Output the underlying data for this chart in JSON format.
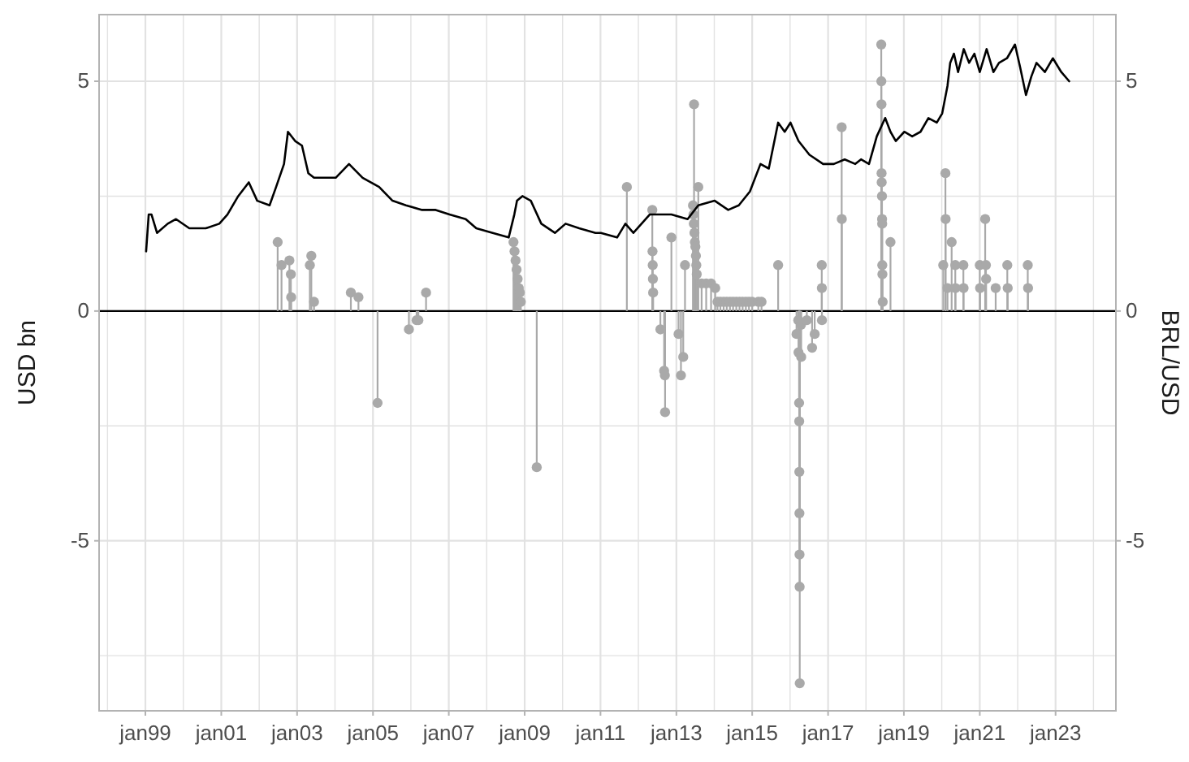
{
  "chart_data": {
    "type": "lollipop",
    "ylabel": "USD bn",
    "y2label": "BRL/USD",
    "xlim": [
      "1997-10-12",
      "2024-08-04"
    ],
    "xticks": [
      {
        "value": "1998-01-01",
        "label": null
      },
      {
        "value": "1999-01-01",
        "label": "jan99"
      },
      {
        "value": "2000-01-01",
        "label": null
      },
      {
        "value": "2001-01-01",
        "label": "jan01"
      },
      {
        "value": "2002-01-01",
        "label": null
      },
      {
        "value": "2003-01-01",
        "label": "jan03"
      },
      {
        "value": "2004-01-01",
        "label": null
      },
      {
        "value": "2005-01-01",
        "label": "jan05"
      },
      {
        "value": "2006-01-01",
        "label": null
      },
      {
        "value": "2007-01-01",
        "label": "jan07"
      },
      {
        "value": "2008-01-01",
        "label": null
      },
      {
        "value": "2009-01-01",
        "label": "jan09"
      },
      {
        "value": "2010-01-01",
        "label": null
      },
      {
        "value": "2011-01-01",
        "label": "jan11"
      },
      {
        "value": "2012-01-01",
        "label": null
      },
      {
        "value": "2013-01-01",
        "label": "jan13"
      },
      {
        "value": "2014-01-01",
        "label": null
      },
      {
        "value": "2015-01-01",
        "label": "jan15"
      },
      {
        "value": "2016-01-01",
        "label": null
      },
      {
        "value": "2017-01-01",
        "label": "jan17"
      },
      {
        "value": "2018-01-01",
        "label": null
      },
      {
        "value": "2019-01-01",
        "label": "jan19"
      },
      {
        "value": "2020-01-01",
        "label": null
      },
      {
        "value": "2021-01-01",
        "label": "jan21"
      },
      {
        "value": "2022-01-01",
        "label": null
      },
      {
        "value": "2023-01-01",
        "label": "jan23"
      },
      {
        "value": "2024-01-01",
        "label": null
      }
    ],
    "ylim": [
      -8.7,
      6.45
    ],
    "yticks": [
      {
        "value": -7.5,
        "label": null
      },
      -5,
      {
        "value": -2.5,
        "label": null
      },
      0,
      {
        "value": 2.5,
        "label": null
      },
      5
    ],
    "y2lim": [
      -8.7,
      6.45
    ],
    "y2ticks": [
      -5,
      0,
      5
    ],
    "grid": true,
    "ref_lines": [
      {
        "axis": "y",
        "value": 0,
        "color": "#000000"
      }
    ],
    "series": [
      {
        "color": "#a9a9a9",
        "marker": "circle",
        "x": [
          "2002-06-28",
          "2002-08-04",
          "2002-10-19",
          "2002-11-02",
          "2002-11-05",
          "2003-05-04",
          "2003-05-18",
          "2003-06-13",
          "2004-06-02",
          "2004-08-14",
          "2005-02-14",
          "2005-12-13",
          "2006-02-25",
          "2006-03-14",
          "2006-05-27",
          "2008-09-15",
          "2008-09-25",
          "2008-10-05",
          "2008-10-15",
          "2008-10-25",
          "2008-11-05",
          "2008-11-15",
          "2008-11-25",
          "2009-04-27",
          "2011-09-12",
          "2012-05-14",
          "2012-05-16",
          "2012-05-18",
          "2012-05-20",
          "2012-05-22",
          "2012-07-31",
          "2012-09-05",
          "2012-09-12",
          "2012-09-14",
          "2012-11-14",
          "2013-01-22",
          "2013-02-14",
          "2013-03-08",
          "2013-03-25",
          "2013-06-20",
          "2013-06-10",
          "2013-06-14",
          "2013-06-18",
          "2013-06-24",
          "2013-06-28",
          "2013-07-03",
          "2013-07-08",
          "2013-07-12",
          "2013-07-16",
          "2013-07-31",
          "2013-09-01",
          "2013-10-15",
          "2013-12-01",
          "2014-01-10",
          "2014-02-01",
          "2014-03-01",
          "2014-04-01",
          "2014-05-01",
          "2014-06-01",
          "2014-07-01",
          "2014-08-01",
          "2014-09-01",
          "2014-10-01",
          "2014-11-01",
          "2014-12-01",
          "2015-01-01",
          "2015-03-01",
          "2015-04-01",
          "2015-09-08",
          "2016-03-03",
          "2016-03-20",
          "2016-03-22",
          "2016-03-28",
          "2016-03-29",
          "2016-03-30",
          "2016-03-31",
          "2016-04-01",
          "2016-04-02",
          "2016-04-03",
          "2016-04-15",
          "2016-04-17",
          "2016-06-10",
          "2016-07-31",
          "2016-08-25",
          "2016-11-03",
          "2016-11-01",
          "2016-11-02",
          "2017-05-12",
          "2017-05-13",
          "2018-05-28",
          "2018-05-29",
          "2018-05-30",
          "2018-05-31",
          "2018-06-01",
          "2018-06-04",
          "2018-06-05",
          "2018-06-06",
          "2018-06-07",
          "2018-06-08",
          "2018-06-11",
          "2018-08-25",
          "2020-01-15",
          "2020-02-05",
          "2020-02-07",
          "2020-02-25",
          "2020-04-05",
          "2020-05-10",
          "2020-05-12",
          "2020-07-27",
          "2020-07-29",
          "2021-01-01",
          "2021-01-04",
          "2021-02-22",
          "2021-03-01",
          "2021-03-03",
          "2021-06-03",
          "2021-09-23",
          "2021-09-27",
          "2022-04-08",
          "2022-04-11"
        ],
        "values": [
          1.5,
          1.0,
          1.1,
          0.8,
          0.3,
          1.0,
          1.2,
          0.2,
          0.4,
          0.3,
          -2.0,
          -0.4,
          -0.2,
          -0.2,
          0.4,
          1.5,
          1.3,
          1.1,
          0.9,
          0.7,
          0.5,
          0.4,
          0.2,
          -3.4,
          2.7,
          2.2,
          1.3,
          1.0,
          0.7,
          0.4,
          -0.4,
          -1.3,
          -1.4,
          -2.2,
          1.6,
          -0.5,
          -1.4,
          -1.0,
          1.0,
          4.5,
          2.3,
          2.1,
          1.9,
          1.7,
          1.5,
          1.4,
          1.2,
          1.0,
          0.8,
          2.7,
          0.6,
          0.6,
          0.6,
          0.5,
          0.2,
          0.2,
          0.2,
          0.2,
          0.2,
          0.2,
          0.2,
          0.2,
          0.2,
          0.2,
          0.2,
          0.2,
          0.2,
          0.2,
          1.0,
          -0.5,
          -0.2,
          -0.9,
          -2.0,
          -2.4,
          -3.5,
          -4.4,
          -5.3,
          -6.0,
          -8.1,
          -0.3,
          -1.0,
          -0.2,
          -0.8,
          -0.5,
          -0.2,
          1.0,
          0.5,
          4.0,
          2.0,
          5.8,
          5.0,
          4.5,
          3.0,
          2.8,
          2.5,
          2.0,
          1.9,
          1.0,
          0.8,
          0.2,
          1.5,
          1.0,
          3.0,
          2.0,
          0.5,
          1.5,
          1.0,
          0.5,
          1.0,
          0.5,
          1.0,
          0.5,
          2.0,
          1.0,
          0.7,
          0.5,
          1.0,
          0.5,
          1.0,
          0.5
        ]
      },
      {
        "type": "line",
        "color": "#000000",
        "x": [
          "1999-01-08",
          "1999-02-02",
          "1999-03-01",
          "1999-04-23",
          "1999-08-04",
          "1999-10-23",
          "2000-02-28",
          "2000-08-04",
          "2000-12-13",
          "2001-03-01",
          "2001-06-13",
          "2001-09-23",
          "2001-12-13",
          "2002-04-11",
          "2002-06-13",
          "2002-08-28",
          "2002-10-05",
          "2002-12-13",
          "2003-02-17",
          "2003-04-19",
          "2003-06-13",
          "2003-09-23",
          "2004-01-08",
          "2004-05-15",
          "2004-09-23",
          "2005-03-01",
          "2005-07-08",
          "2005-11-14",
          "2006-04-19",
          "2006-08-28",
          "2007-01-08",
          "2007-06-13",
          "2007-09-23",
          "2008-02-28",
          "2008-07-31",
          "2008-09-23",
          "2008-10-19",
          "2008-12-10",
          "2009-03-01",
          "2009-06-10",
          "2009-10-19",
          "2010-01-30",
          "2010-06-10",
          "2010-11-14",
          "2011-01-05",
          "2011-06-10",
          "2011-08-29",
          "2011-11-14",
          "2012-04-19",
          "2012-11-14",
          "2013-04-19",
          "2013-07-31",
          "2014-01-05",
          "2014-05-15",
          "2014-08-25",
          "2014-12-10",
          "2015-03-22",
          "2015-06-10",
          "2015-09-08",
          "2015-11-10",
          "2016-01-05",
          "2016-03-22",
          "2016-07-05",
          "2016-11-14",
          "2017-02-25",
          "2017-06-10",
          "2017-09-20",
          "2017-11-14",
          "2018-01-30",
          "2018-04-15",
          "2018-07-05",
          "2018-08-25",
          "2018-10-15",
          "2019-01-05",
          "2019-03-22",
          "2019-06-10",
          "2019-08-25",
          "2019-11-14",
          "2020-01-05",
          "2020-02-25",
          "2020-03-22",
          "2020-04-27",
          "2020-06-06",
          "2020-07-31",
          "2020-09-20",
          "2020-11-10",
          "2021-01-01",
          "2021-03-08",
          "2021-05-12",
          "2021-07-05",
          "2021-09-20",
          "2021-12-06",
          "2022-01-25",
          "2022-03-22",
          "2022-05-12",
          "2022-07-01",
          "2022-09-20",
          "2022-12-06",
          "2023-02-25",
          "2023-05-12"
        ],
        "values": [
          1.3,
          2.1,
          2.1,
          1.7,
          1.9,
          2.0,
          1.8,
          1.8,
          1.9,
          2.1,
          2.5,
          2.8,
          2.4,
          2.3,
          2.7,
          3.2,
          3.9,
          3.7,
          3.6,
          3.0,
          2.9,
          2.9,
          2.9,
          3.2,
          2.9,
          2.7,
          2.4,
          2.3,
          2.2,
          2.2,
          2.1,
          2.0,
          1.8,
          1.7,
          1.6,
          2.1,
          2.4,
          2.5,
          2.4,
          1.9,
          1.7,
          1.9,
          1.8,
          1.7,
          1.7,
          1.6,
          1.9,
          1.7,
          2.1,
          2.1,
          2.0,
          2.3,
          2.4,
          2.2,
          2.3,
          2.6,
          3.2,
          3.1,
          4.1,
          3.9,
          4.1,
          3.7,
          3.4,
          3.2,
          3.2,
          3.3,
          3.2,
          3.3,
          3.2,
          3.8,
          4.2,
          3.9,
          3.7,
          3.9,
          3.8,
          3.9,
          4.2,
          4.1,
          4.3,
          4.9,
          5.4,
          5.6,
          5.2,
          5.7,
          5.4,
          5.6,
          5.2,
          5.7,
          5.2,
          5.4,
          5.5,
          5.8,
          5.3,
          4.7,
          5.1,
          5.4,
          5.2,
          5.5,
          5.2,
          5.0
        ]
      }
    ]
  }
}
